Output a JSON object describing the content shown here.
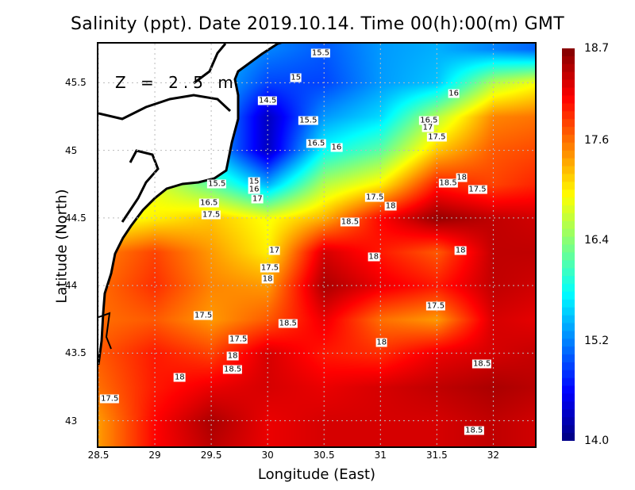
{
  "title": "Salinity (ppt). Date 2019.10.14. Time 00(h):00(m) GMT",
  "depth_label": "Z = 2.5 m",
  "chart_data": {
    "type": "heatmap",
    "title": "Salinity (ppt). Date 2019.10.14. Time 00(h):00(m) GMT",
    "xlabel": "Longitude (East)",
    "ylabel": "Latitude (North)",
    "xlim": [
      28.5,
      32.37
    ],
    "ylim": [
      42.81,
      45.79
    ],
    "x_ticks": [
      "28.5",
      "29",
      "29.5",
      "30",
      "30.5",
      "31",
      "31.5",
      "32"
    ],
    "y_ticks": [
      "45.5",
      "45",
      "44.5",
      "44",
      "43.5",
      "43"
    ],
    "grid": true,
    "colormap": "jet",
    "colorbar": {
      "min": 14.0,
      "max": 18.7,
      "ticks": [
        "18.7",
        "17.6",
        "16.4",
        "15.2",
        "14.0"
      ],
      "placement": "right"
    },
    "grid_lon": [
      28.5,
      29,
      29.5,
      30,
      30.5,
      31,
      31.5,
      32,
      32.5
    ],
    "grid_lat": [
      45.75,
      45.5,
      45.25,
      45.0,
      44.75,
      44.5,
      44.25,
      44.0,
      43.75,
      43.5,
      43.25,
      43.0,
      42.75
    ],
    "values": [
      [
        16.0,
        16.0,
        15.5,
        15.2,
        15.0,
        15.3,
        15.4,
        15.2,
        15.0
      ],
      [
        16.0,
        16.0,
        15.5,
        14.9,
        14.9,
        15.3,
        15.5,
        16.6,
        17.0
      ],
      [
        16.0,
        16.0,
        15.5,
        14.3,
        15.3,
        15.6,
        16.6,
        17.5,
        17.6
      ],
      [
        16.0,
        16.0,
        15.5,
        14.3,
        15.8,
        16.2,
        17.2,
        17.7,
        17.8
      ],
      [
        16.8,
        16.8,
        16.2,
        15.4,
        16.6,
        17.0,
        18.0,
        17.8,
        18.0
      ],
      [
        16.8,
        17.0,
        17.2,
        16.9,
        17.3,
        18.1,
        18.6,
        18.4,
        18.3
      ],
      [
        17.5,
        17.8,
        17.4,
        17.0,
        18.3,
        18.0,
        17.7,
        18.4,
        18.4
      ],
      [
        17.6,
        17.9,
        17.5,
        17.4,
        18.5,
        18.2,
        18.0,
        18.4,
        18.3
      ],
      [
        17.6,
        17.7,
        17.4,
        17.7,
        18.2,
        17.6,
        17.4,
        18.3,
        18.2
      ],
      [
        17.7,
        18.0,
        17.8,
        18.3,
        18.0,
        17.9,
        18.2,
        18.3,
        18.4
      ],
      [
        17.6,
        18.0,
        18.2,
        18.3,
        18.2,
        18.3,
        18.4,
        18.5,
        18.4
      ],
      [
        17.4,
        18.1,
        18.5,
        18.2,
        18.3,
        18.3,
        18.3,
        18.4,
        18.3
      ],
      [
        17.4,
        18.1,
        18.4,
        18.2,
        18.3,
        18.3,
        18.3,
        18.4,
        18.3
      ]
    ],
    "contour_labels": [
      {
        "text": "15.5",
        "lon": 30.47,
        "lat": 45.72
      },
      {
        "text": "15",
        "lon": 30.25,
        "lat": 45.54
      },
      {
        "text": "14.5",
        "lon": 30.0,
        "lat": 45.37
      },
      {
        "text": "15.5",
        "lon": 30.36,
        "lat": 45.22
      },
      {
        "text": "16",
        "lon": 31.65,
        "lat": 45.42
      },
      {
        "text": "16.5",
        "lon": 30.43,
        "lat": 45.05
      },
      {
        "text": "16",
        "lon": 30.61,
        "lat": 45.02
      },
      {
        "text": "16.5",
        "lon": 31.43,
        "lat": 45.22
      },
      {
        "text": "17",
        "lon": 31.42,
        "lat": 45.17
      },
      {
        "text": "17.5",
        "lon": 31.5,
        "lat": 45.1
      },
      {
        "text": "15",
        "lon": 29.88,
        "lat": 44.77
      },
      {
        "text": "16",
        "lon": 29.88,
        "lat": 44.71
      },
      {
        "text": "15.5",
        "lon": 29.55,
        "lat": 44.75
      },
      {
        "text": "16.5",
        "lon": 29.48,
        "lat": 44.61
      },
      {
        "text": "17",
        "lon": 29.91,
        "lat": 44.64
      },
      {
        "text": "17.5",
        "lon": 29.5,
        "lat": 44.52
      },
      {
        "text": "17.5",
        "lon": 30.95,
        "lat": 44.65
      },
      {
        "text": "18",
        "lon": 31.09,
        "lat": 44.59
      },
      {
        "text": "18.5",
        "lon": 30.73,
        "lat": 44.47
      },
      {
        "text": "18",
        "lon": 31.72,
        "lat": 44.8
      },
      {
        "text": "18.5",
        "lon": 31.6,
        "lat": 44.76
      },
      {
        "text": "17.5",
        "lon": 31.86,
        "lat": 44.71
      },
      {
        "text": "17",
        "lon": 30.06,
        "lat": 44.26
      },
      {
        "text": "17.5",
        "lon": 30.02,
        "lat": 44.13
      },
      {
        "text": "18",
        "lon": 30.0,
        "lat": 44.05
      },
      {
        "text": "18",
        "lon": 30.94,
        "lat": 44.21
      },
      {
        "text": "18",
        "lon": 31.71,
        "lat": 44.26
      },
      {
        "text": "17.5",
        "lon": 29.43,
        "lat": 43.78
      },
      {
        "text": "17.5",
        "lon": 29.74,
        "lat": 43.6
      },
      {
        "text": "18.5",
        "lon": 30.18,
        "lat": 43.72
      },
      {
        "text": "17.5",
        "lon": 31.49,
        "lat": 43.85
      },
      {
        "text": "18",
        "lon": 31.01,
        "lat": 43.58
      },
      {
        "text": "18",
        "lon": 29.69,
        "lat": 43.48
      },
      {
        "text": "18.5",
        "lon": 29.69,
        "lat": 43.38
      },
      {
        "text": "18",
        "lon": 29.22,
        "lat": 43.32
      },
      {
        "text": "18.5",
        "lon": 31.9,
        "lat": 43.42
      },
      {
        "text": "17.5",
        "lon": 28.6,
        "lat": 43.16
      },
      {
        "text": "18.5",
        "lon": 31.83,
        "lat": 42.93
      }
    ]
  }
}
